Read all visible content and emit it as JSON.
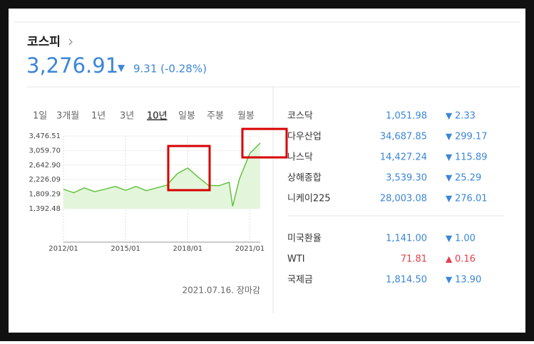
{
  "header": {
    "title": "코스피",
    "value": "3,276.91",
    "direction": "▼",
    "change": "9.31 (-0.28%)"
  },
  "tabs": [
    "1일",
    "3개월",
    "1년",
    "3년",
    "10년",
    "일봉",
    "주봉",
    "월봉"
  ],
  "selected_tab": "10년",
  "chart_data": {
    "type": "area",
    "color": "#63c33f",
    "fill": "#e3f6dc",
    "x": [
      "2012/01",
      "2012/07",
      "2013/01",
      "2013/07",
      "2014/01",
      "2014/07",
      "2015/01",
      "2015/07",
      "2016/01",
      "2016/07",
      "2017/01",
      "2017/07",
      "2018/01",
      "2018/07",
      "2019/01",
      "2019/07",
      "2020/01",
      "2020/03",
      "2020/07",
      "2021/01",
      "2021/07"
    ],
    "values": [
      1950,
      1850,
      1990,
      1880,
      1950,
      2030,
      1920,
      2030,
      1910,
      1990,
      2070,
      2400,
      2560,
      2300,
      2060,
      2050,
      2150,
      1460,
      2250,
      2980,
      3276
    ],
    "xlim": [
      "2012/01",
      "2021/07"
    ],
    "xticks": [
      "2012/01",
      "2015/01",
      "2018/01",
      "2021/01"
    ],
    "ylim": [
      1392.48,
      3476.51
    ],
    "yticks": [
      {
        "value": 3476.51,
        "label": "3,476.51"
      },
      {
        "value": 3059.7,
        "label": "3,059.70"
      },
      {
        "value": 2642.9,
        "label": "2,642.90"
      },
      {
        "value": 2226.09,
        "label": "2,226.09"
      },
      {
        "value": 1809.29,
        "label": "1,809.29"
      },
      {
        "value": 1392.48,
        "label": "1,392.48"
      }
    ],
    "note": "2021.07.16. 장마감"
  },
  "markets": [
    {
      "name": "코스닥",
      "value": "1,051.98",
      "direction": "▼",
      "change": "2.33",
      "color": "#3b86d8"
    },
    {
      "name": "다우산업",
      "value": "34,687.85",
      "direction": "▼",
      "change": "299.17",
      "color": "#3b86d8"
    },
    {
      "name": "나스닥",
      "value": "14,427.24",
      "direction": "▼",
      "change": "115.89",
      "color": "#3b86d8"
    },
    {
      "name": "상해종합",
      "value": "3,539.30",
      "direction": "▼",
      "change": "25.29",
      "color": "#3b86d8"
    },
    {
      "name": "니케이225",
      "value": "28,003.08",
      "direction": "▼",
      "change": "276.01",
      "color": "#3b86d8"
    }
  ],
  "commodities": [
    {
      "name": "미국환율",
      "value": "1,141.00",
      "direction": "▼",
      "change": "1.00",
      "color": "#3b86d8"
    },
    {
      "name": "WTI",
      "value": "71.81",
      "direction": "▲",
      "change": "0.16",
      "color": "#e5404a"
    },
    {
      "name": "국제금",
      "value": "1,814.50",
      "direction": "▼",
      "change": "13.90",
      "color": "#3b86d8"
    }
  ]
}
